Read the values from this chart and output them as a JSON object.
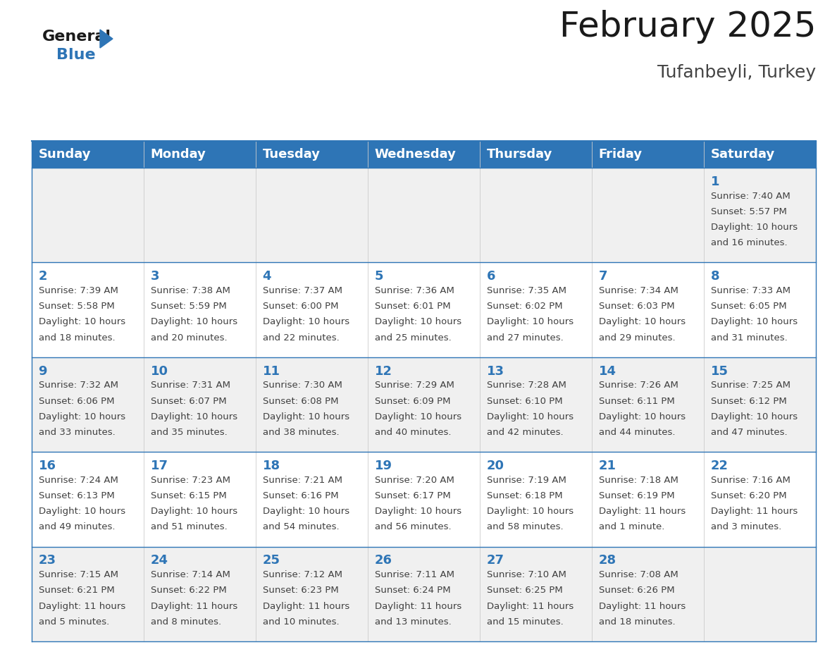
{
  "title": "February 2025",
  "subtitle": "Tufanbeyli, Turkey",
  "header_color": "#2E75B6",
  "header_text_color": "#FFFFFF",
  "day_names": [
    "Sunday",
    "Monday",
    "Tuesday",
    "Wednesday",
    "Thursday",
    "Friday",
    "Saturday"
  ],
  "bg_color": "#FFFFFF",
  "cell_bg_even": "#F0F0F0",
  "cell_bg_odd": "#FFFFFF",
  "line_color": "#2E75B6",
  "date_color": "#2E75B6",
  "info_color": "#404040",
  "calendar": [
    [
      null,
      null,
      null,
      null,
      null,
      null,
      {
        "day": 1,
        "sunrise": "7:40 AM",
        "sunset": "5:57 PM",
        "daylight_line1": "Daylight: 10 hours",
        "daylight_line2": "and 16 minutes."
      }
    ],
    [
      {
        "day": 2,
        "sunrise": "7:39 AM",
        "sunset": "5:58 PM",
        "daylight_line1": "Daylight: 10 hours",
        "daylight_line2": "and 18 minutes."
      },
      {
        "day": 3,
        "sunrise": "7:38 AM",
        "sunset": "5:59 PM",
        "daylight_line1": "Daylight: 10 hours",
        "daylight_line2": "and 20 minutes."
      },
      {
        "day": 4,
        "sunrise": "7:37 AM",
        "sunset": "6:00 PM",
        "daylight_line1": "Daylight: 10 hours",
        "daylight_line2": "and 22 minutes."
      },
      {
        "day": 5,
        "sunrise": "7:36 AM",
        "sunset": "6:01 PM",
        "daylight_line1": "Daylight: 10 hours",
        "daylight_line2": "and 25 minutes."
      },
      {
        "day": 6,
        "sunrise": "7:35 AM",
        "sunset": "6:02 PM",
        "daylight_line1": "Daylight: 10 hours",
        "daylight_line2": "and 27 minutes."
      },
      {
        "day": 7,
        "sunrise": "7:34 AM",
        "sunset": "6:03 PM",
        "daylight_line1": "Daylight: 10 hours",
        "daylight_line2": "and 29 minutes."
      },
      {
        "day": 8,
        "sunrise": "7:33 AM",
        "sunset": "6:05 PM",
        "daylight_line1": "Daylight: 10 hours",
        "daylight_line2": "and 31 minutes."
      }
    ],
    [
      {
        "day": 9,
        "sunrise": "7:32 AM",
        "sunset": "6:06 PM",
        "daylight_line1": "Daylight: 10 hours",
        "daylight_line2": "and 33 minutes."
      },
      {
        "day": 10,
        "sunrise": "7:31 AM",
        "sunset": "6:07 PM",
        "daylight_line1": "Daylight: 10 hours",
        "daylight_line2": "and 35 minutes."
      },
      {
        "day": 11,
        "sunrise": "7:30 AM",
        "sunset": "6:08 PM",
        "daylight_line1": "Daylight: 10 hours",
        "daylight_line2": "and 38 minutes."
      },
      {
        "day": 12,
        "sunrise": "7:29 AM",
        "sunset": "6:09 PM",
        "daylight_line1": "Daylight: 10 hours",
        "daylight_line2": "and 40 minutes."
      },
      {
        "day": 13,
        "sunrise": "7:28 AM",
        "sunset": "6:10 PM",
        "daylight_line1": "Daylight: 10 hours",
        "daylight_line2": "and 42 minutes."
      },
      {
        "day": 14,
        "sunrise": "7:26 AM",
        "sunset": "6:11 PM",
        "daylight_line1": "Daylight: 10 hours",
        "daylight_line2": "and 44 minutes."
      },
      {
        "day": 15,
        "sunrise": "7:25 AM",
        "sunset": "6:12 PM",
        "daylight_line1": "Daylight: 10 hours",
        "daylight_line2": "and 47 minutes."
      }
    ],
    [
      {
        "day": 16,
        "sunrise": "7:24 AM",
        "sunset": "6:13 PM",
        "daylight_line1": "Daylight: 10 hours",
        "daylight_line2": "and 49 minutes."
      },
      {
        "day": 17,
        "sunrise": "7:23 AM",
        "sunset": "6:15 PM",
        "daylight_line1": "Daylight: 10 hours",
        "daylight_line2": "and 51 minutes."
      },
      {
        "day": 18,
        "sunrise": "7:21 AM",
        "sunset": "6:16 PM",
        "daylight_line1": "Daylight: 10 hours",
        "daylight_line2": "and 54 minutes."
      },
      {
        "day": 19,
        "sunrise": "7:20 AM",
        "sunset": "6:17 PM",
        "daylight_line1": "Daylight: 10 hours",
        "daylight_line2": "and 56 minutes."
      },
      {
        "day": 20,
        "sunrise": "7:19 AM",
        "sunset": "6:18 PM",
        "daylight_line1": "Daylight: 10 hours",
        "daylight_line2": "and 58 minutes."
      },
      {
        "day": 21,
        "sunrise": "7:18 AM",
        "sunset": "6:19 PM",
        "daylight_line1": "Daylight: 11 hours",
        "daylight_line2": "and 1 minute."
      },
      {
        "day": 22,
        "sunrise": "7:16 AM",
        "sunset": "6:20 PM",
        "daylight_line1": "Daylight: 11 hours",
        "daylight_line2": "and 3 minutes."
      }
    ],
    [
      {
        "day": 23,
        "sunrise": "7:15 AM",
        "sunset": "6:21 PM",
        "daylight_line1": "Daylight: 11 hours",
        "daylight_line2": "and 5 minutes."
      },
      {
        "day": 24,
        "sunrise": "7:14 AM",
        "sunset": "6:22 PM",
        "daylight_line1": "Daylight: 11 hours",
        "daylight_line2": "and 8 minutes."
      },
      {
        "day": 25,
        "sunrise": "7:12 AM",
        "sunset": "6:23 PM",
        "daylight_line1": "Daylight: 11 hours",
        "daylight_line2": "and 10 minutes."
      },
      {
        "day": 26,
        "sunrise": "7:11 AM",
        "sunset": "6:24 PM",
        "daylight_line1": "Daylight: 11 hours",
        "daylight_line2": "and 13 minutes."
      },
      {
        "day": 27,
        "sunrise": "7:10 AM",
        "sunset": "6:25 PM",
        "daylight_line1": "Daylight: 11 hours",
        "daylight_line2": "and 15 minutes."
      },
      {
        "day": 28,
        "sunrise": "7:08 AM",
        "sunset": "6:26 PM",
        "daylight_line1": "Daylight: 11 hours",
        "daylight_line2": "and 18 minutes."
      },
      null
    ]
  ],
  "logo_text_general": "General",
  "logo_text_blue": "Blue",
  "title_fontsize": 36,
  "subtitle_fontsize": 18,
  "header_fontsize": 13,
  "day_num_fontsize": 13,
  "info_fontsize": 9.5
}
